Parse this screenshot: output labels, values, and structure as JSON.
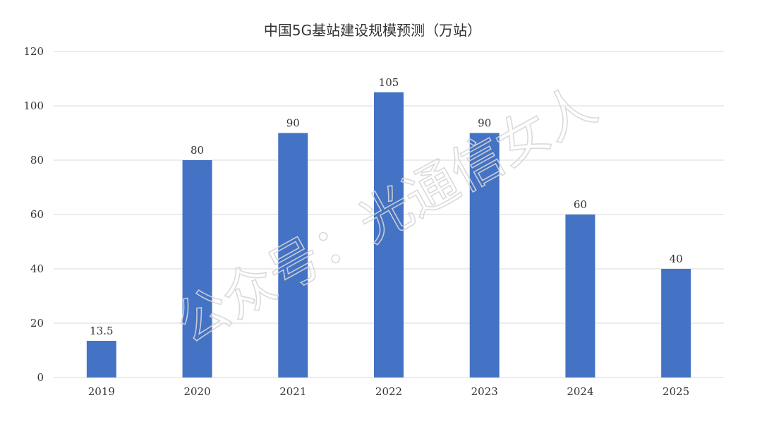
{
  "chart_data": {
    "type": "bar",
    "title": "中国5G基站建设规模预测（万站）",
    "categories": [
      "2019",
      "2020",
      "2021",
      "2022",
      "2023",
      "2024",
      "2025"
    ],
    "series": [
      {
        "values": [
          13.5,
          80,
          90,
          105,
          90,
          60,
          40
        ],
        "color": "#4472c4"
      }
    ],
    "data_labels": [
      "13.5",
      "80",
      "90",
      "105",
      "90",
      "60",
      "40"
    ],
    "ylim": [
      0,
      120
    ],
    "yticks": [
      "0",
      "20",
      "40",
      "60",
      "80",
      "100",
      "120"
    ],
    "xlabel": "",
    "ylabel": "",
    "grid": true,
    "legend": "none"
  },
  "watermark": {
    "text": "公众号：光通信女人"
  }
}
